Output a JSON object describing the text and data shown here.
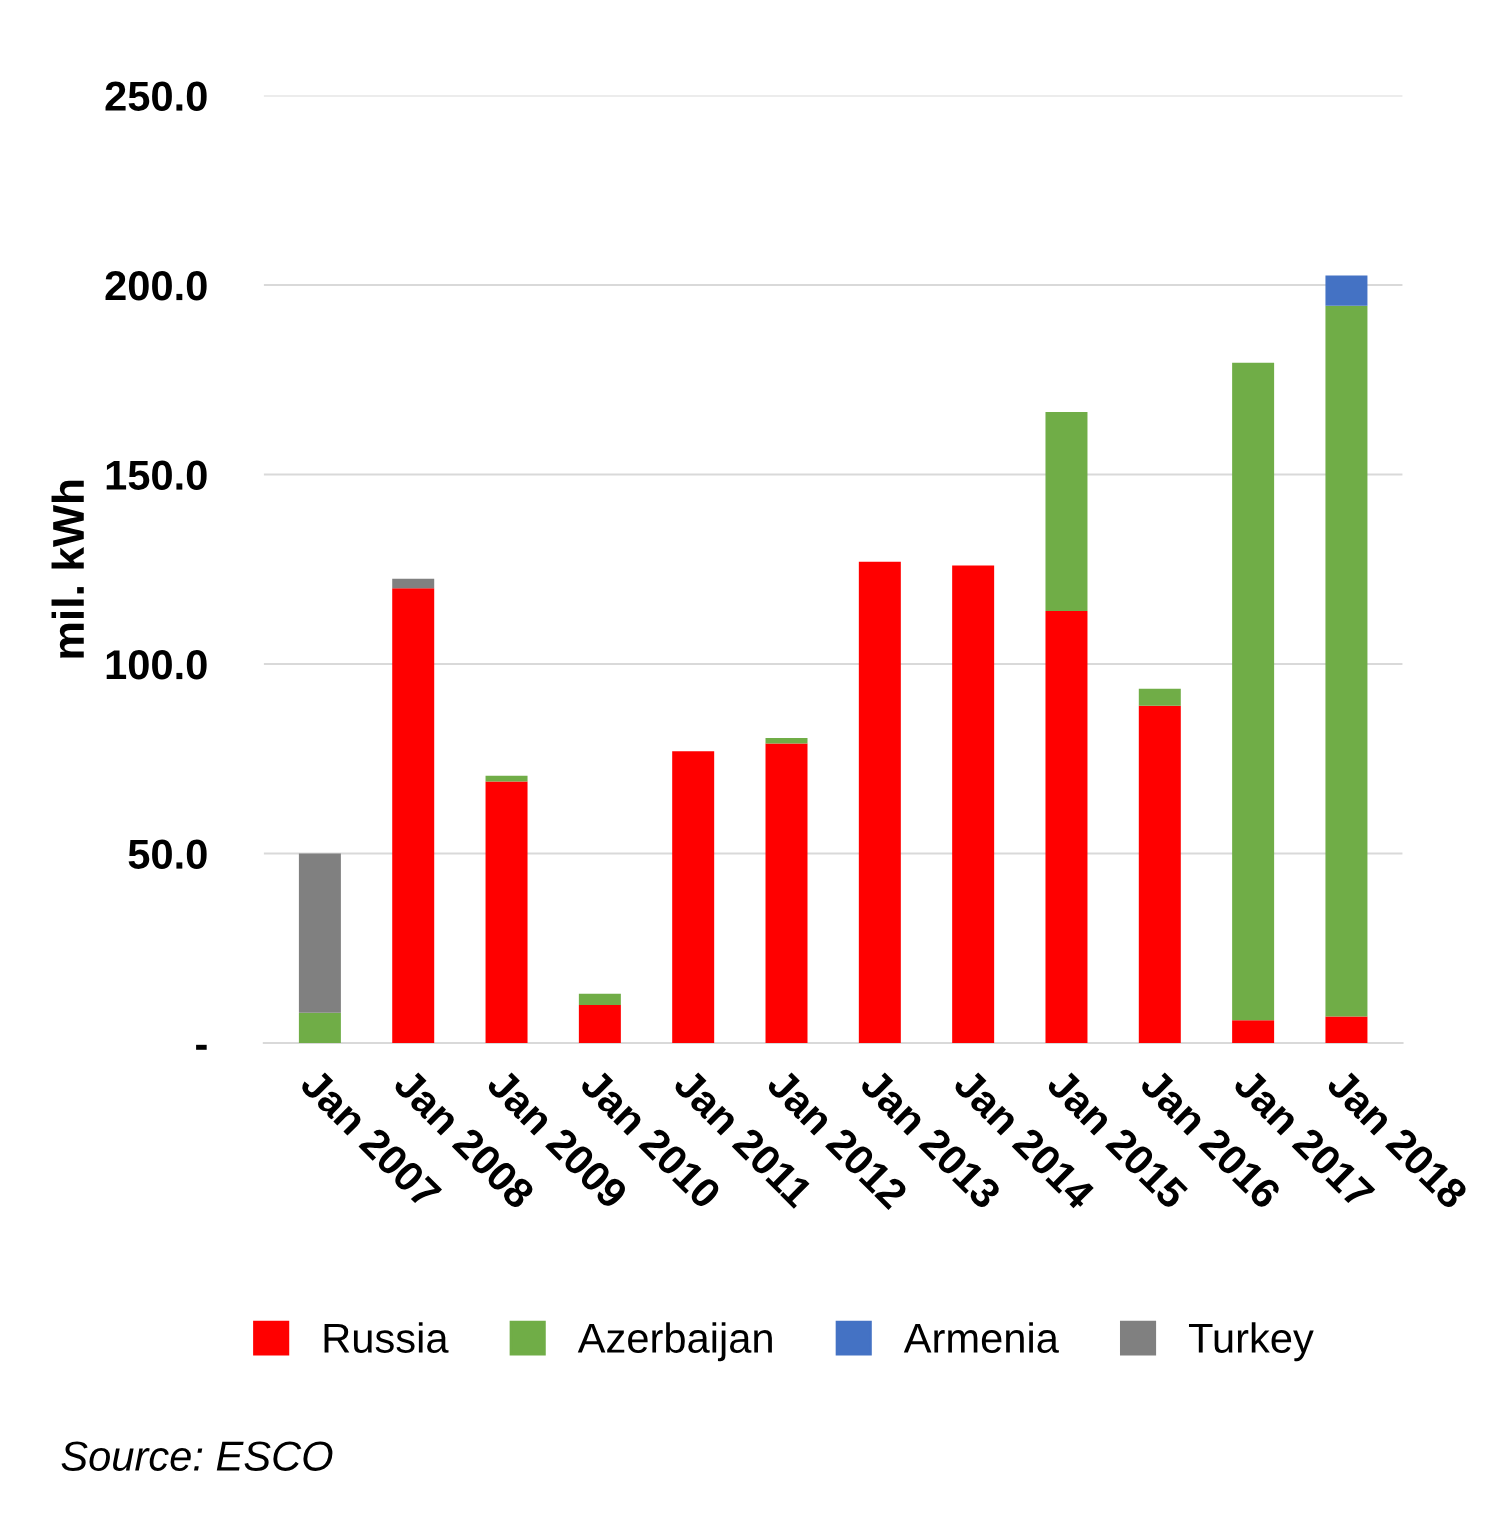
{
  "chart_data": {
    "type": "bar",
    "stacked": true,
    "ylabel": "mil. kWh",
    "categories": [
      "Jan 2007",
      "Jan 2008",
      "Jan 2009",
      "Jan 2010",
      "Jan 2011",
      "Jan 2012",
      "Jan 2013",
      "Jan 2014",
      "Jan 2015",
      "Jan 2016",
      "Jan 2017",
      "Jan 2018"
    ],
    "series": [
      {
        "name": "Russia",
        "color": "#ff0000",
        "values": [
          0,
          120,
          69,
          10,
          77,
          79,
          127,
          126,
          114,
          89,
          6,
          7
        ]
      },
      {
        "name": "Azerbaijan",
        "color": "#70ad47",
        "values": [
          8,
          0,
          1.5,
          3,
          0,
          1.5,
          0,
          0,
          52.5,
          4.5,
          173.5,
          187.5
        ]
      },
      {
        "name": "Armenia",
        "color": "#4472c4",
        "values": [
          0,
          0,
          0,
          0,
          0,
          0,
          0,
          0,
          0,
          0,
          0,
          8
        ]
      },
      {
        "name": "Turkey",
        "color": "#808080",
        "values": [
          42,
          2.5,
          0,
          0,
          0,
          0,
          0,
          0,
          0,
          0,
          0,
          0
        ]
      }
    ],
    "ylim": [
      0,
      250
    ],
    "yticks": [
      {
        "value": 0,
        "label": "-"
      },
      {
        "value": 50,
        "label": "50.0"
      },
      {
        "value": 100,
        "label": "100.0"
      },
      {
        "value": 150,
        "label": "150.0"
      },
      {
        "value": 200,
        "label": "200.0"
      },
      {
        "value": 250,
        "label": "250.0"
      }
    ],
    "grid": "y",
    "legend": "bottom",
    "annotations": [
      "Source: ESCO"
    ]
  }
}
